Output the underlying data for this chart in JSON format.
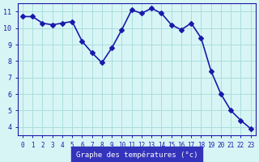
{
  "x": [
    0,
    1,
    2,
    3,
    4,
    5,
    6,
    7,
    8,
    9,
    10,
    11,
    12,
    13,
    14,
    15,
    16,
    17,
    18,
    19,
    20,
    21,
    22,
    23
  ],
  "y": [
    10.7,
    10.7,
    10.3,
    10.2,
    10.3,
    10.4,
    9.2,
    8.5,
    7.9,
    8.8,
    9.9,
    11.1,
    10.9,
    11.2,
    10.9,
    10.2,
    9.9,
    10.3,
    9.4,
    7.4,
    6.0,
    5.0,
    4.4,
    3.9
  ],
  "line_color": "#1a1aaa",
  "marker": "D",
  "markersize": 3,
  "linewidth": 1.2,
  "bg_color": "#d8f5f5",
  "grid_color": "#aadddd",
  "xlabel": "Graphe des températures (°c)",
  "xlabel_color": "#1a1aaa",
  "xlabel_bg": "#3333cc",
  "yticks": [
    4,
    5,
    6,
    7,
    8,
    9,
    10,
    11
  ],
  "xticks": [
    0,
    1,
    2,
    3,
    4,
    5,
    6,
    7,
    8,
    9,
    10,
    11,
    12,
    13,
    14,
    15,
    16,
    17,
    18,
    19,
    20,
    21,
    22,
    23
  ],
  "ylim": [
    3.5,
    11.5
  ],
  "xlim": [
    -0.5,
    23.5
  ]
}
